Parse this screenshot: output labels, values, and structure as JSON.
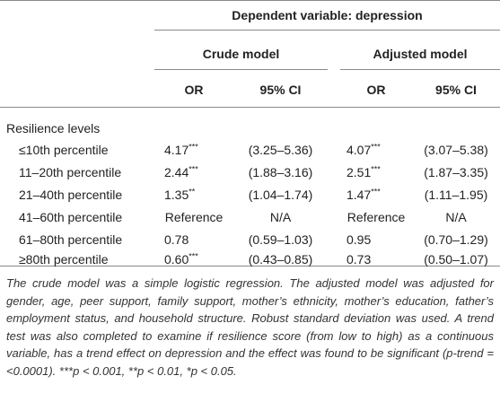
{
  "header": {
    "dependent": "Dependent variable: depression",
    "crude": "Crude model",
    "adjusted": "Adjusted model",
    "or": "OR",
    "ci": "95% CI"
  },
  "section_label": "Resilience levels",
  "rows": [
    {
      "label": "≤10th percentile",
      "crude_or": "4.17",
      "crude_or_sig": "***",
      "crude_ci": "(3.25–5.36)",
      "adj_or": "4.07",
      "adj_or_sig": "***",
      "adj_ci": "(3.07–5.38)"
    },
    {
      "label": "11–20th percentile",
      "crude_or": "2.44",
      "crude_or_sig": "***",
      "crude_ci": "(1.88–3.16)",
      "adj_or": "2.51",
      "adj_or_sig": "***",
      "adj_ci": "(1.87–3.35)"
    },
    {
      "label": "21–40th percentile",
      "crude_or": "1.35",
      "crude_or_sig": "**",
      "crude_ci": "(1.04–1.74)",
      "adj_or": "1.47",
      "adj_or_sig": "***",
      "adj_ci": "(1.11–1.95)"
    },
    {
      "label": "41–60th percentile",
      "crude_or": "Reference",
      "crude_or_sig": "",
      "crude_ci": "N/A",
      "adj_or": "Reference",
      "adj_or_sig": "",
      "adj_ci": "N/A"
    },
    {
      "label": "61–80th percentile",
      "crude_or": "0.78",
      "crude_or_sig": "",
      "crude_ci": "(0.59–1.03)",
      "adj_or": "0.95",
      "adj_or_sig": "",
      "adj_ci": "(0.70–1.29)"
    },
    {
      "label": "≥80th percentile",
      "crude_or": "0.60",
      "crude_or_sig": "***",
      "crude_ci": "(0.43–0.85)",
      "adj_or": "0.73",
      "adj_or_sig": "",
      "adj_ci": "(0.50–1.07)"
    }
  ],
  "footnote": {
    "text": "The crude model was a simple logistic regression. The adjusted model was adjusted for gender, age, peer support, family support, mother’s ethnicity, mother’s education, father’s employment status, and household structure. Robust standard deviation was used. A trend test was also completed to examine if resilience score (from low to high) as a continuous variable, has a trend effect on depression and the effect was found to be significant (p-trend = <0.0001).",
    "sig1_stars": "***",
    "sig1_text": "p < 0.001, ",
    "sig2_stars": "**",
    "sig2_text": "p < 0.01, ",
    "sig3_stars": "*",
    "sig3_text": "p < 0.05."
  }
}
